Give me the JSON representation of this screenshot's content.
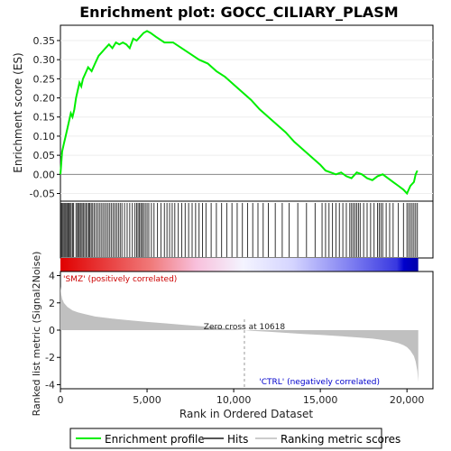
{
  "chart_data": {
    "type": "line",
    "title": "Enrichment plot: GOCC_CILIARY_PLASM",
    "es_panel": {
      "ylabel": "Enrichment score (ES)",
      "ylim": [
        -0.07,
        0.39
      ],
      "yticks": [
        -0.05,
        0.0,
        0.05,
        0.1,
        0.15,
        0.2,
        0.25,
        0.3,
        0.35
      ],
      "ytick_labels": [
        "-0.05",
        "0.00",
        "0.05",
        "0.10",
        "0.15",
        "0.20",
        "0.25",
        "0.30",
        "0.35"
      ],
      "series": [
        {
          "name": "Enrichment profile",
          "color": "#00ee00",
          "x": [
            0,
            100,
            200,
            300,
            400,
            500,
            600,
            700,
            800,
            900,
            1000,
            1100,
            1200,
            1300,
            1400,
            1500,
            1600,
            1800,
            2000,
            2200,
            2400,
            2600,
            2800,
            3000,
            3200,
            3400,
            3600,
            3800,
            4000,
            4200,
            4400,
            4600,
            4800,
            5000,
            5200,
            5500,
            6000,
            6500,
            7000,
            7500,
            8000,
            8500,
            9000,
            9500,
            10000,
            10500,
            11000,
            11500,
            12000,
            12500,
            13000,
            13500,
            14000,
            14500,
            15000,
            15300,
            15600,
            15900,
            16200,
            16500,
            16800,
            17100,
            17400,
            17700,
            18000,
            18300,
            18600,
            18900,
            19200,
            19500,
            19800,
            20000,
            20200,
            20400,
            20500,
            20600
          ],
          "y": [
            0.0,
            0.06,
            0.08,
            0.1,
            0.12,
            0.14,
            0.16,
            0.15,
            0.17,
            0.2,
            0.22,
            0.24,
            0.23,
            0.25,
            0.26,
            0.27,
            0.28,
            0.27,
            0.29,
            0.31,
            0.32,
            0.33,
            0.34,
            0.33,
            0.345,
            0.34,
            0.345,
            0.34,
            0.33,
            0.355,
            0.35,
            0.36,
            0.37,
            0.375,
            0.37,
            0.36,
            0.345,
            0.345,
            0.33,
            0.315,
            0.3,
            0.29,
            0.27,
            0.255,
            0.235,
            0.215,
            0.195,
            0.17,
            0.15,
            0.13,
            0.11,
            0.085,
            0.065,
            0.045,
            0.025,
            0.01,
            0.005,
            0.0,
            0.005,
            -0.005,
            -0.01,
            0.005,
            0.0,
            -0.01,
            -0.015,
            -0.005,
            0.0,
            -0.01,
            -0.02,
            -0.03,
            -0.04,
            -0.05,
            -0.03,
            -0.02,
            0.0,
            0.01
          ]
        }
      ]
    },
    "hits": [
      30,
      80,
      140,
      200,
      260,
      320,
      380,
      440,
      500,
      560,
      620,
      700,
      760,
      900,
      980,
      1040,
      1100,
      1180,
      1250,
      1320,
      1400,
      1480,
      1560,
      1640,
      1700,
      1780,
      1860,
      1950,
      2050,
      2150,
      2250,
      2350,
      2450,
      2550,
      2650,
      2750,
      2850,
      2950,
      3050,
      3150,
      3250,
      3350,
      3450,
      3550,
      3700,
      3850,
      4000,
      4150,
      4300,
      4400,
      4480,
      4560,
      4640,
      4720,
      4800,
      4900,
      5000,
      5100,
      5250,
      5400,
      5600,
      5800,
      6000,
      6150,
      6300,
      6450,
      6600,
      6800,
      7000,
      7200,
      7400,
      7600,
      7800,
      8000,
      8200,
      8400,
      8700,
      9000,
      9300,
      9600,
      9900,
      10200,
      10500,
      10800,
      11100,
      11400,
      11700,
      12000,
      12400,
      12800,
      13200,
      13700,
      14200,
      14700,
      15100,
      15300,
      15500,
      15700,
      15900,
      16100,
      16300,
      16500,
      16700,
      16800,
      16900,
      17000,
      17100,
      17200,
      17300,
      17500,
      17700,
      17900,
      18100,
      18300,
      18400,
      18500,
      18600,
      18800,
      19000,
      19200,
      19500,
      19800,
      20000,
      20100,
      20200,
      20300,
      20400,
      20500,
      20600
    ],
    "metric_panel": {
      "ylabel": "Ranked list metric (Signal2Noise)",
      "ylim": [
        -4.3,
        4.3
      ],
      "yticks": [
        -4,
        -2,
        0,
        2,
        4
      ],
      "ytick_labels": [
        "-4",
        "-2",
        "0",
        "2",
        "4"
      ],
      "profile_x": [
        0,
        50,
        100,
        200,
        400,
        700,
        1000,
        1500,
        2000,
        3000,
        4000,
        5000,
        6000,
        7000,
        8000,
        9000,
        10000,
        10618,
        11000,
        12000,
        13000,
        14000,
        15000,
        16000,
        17000,
        18000,
        18500,
        19000,
        19500,
        19800,
        20000,
        20200,
        20400,
        20500,
        20600,
        20650
      ],
      "profile_y": [
        3.2,
        2.6,
        2.3,
        2.0,
        1.7,
        1.45,
        1.3,
        1.15,
        1.0,
        0.85,
        0.72,
        0.6,
        0.5,
        0.4,
        0.3,
        0.2,
        0.08,
        0.0,
        -0.05,
        -0.12,
        -0.2,
        -0.28,
        -0.35,
        -0.43,
        -0.52,
        -0.62,
        -0.7,
        -0.8,
        -0.95,
        -1.1,
        -1.25,
        -1.5,
        -1.9,
        -2.3,
        -3.0,
        -3.8
      ],
      "zero_cross_label": "Zero cross at 10618",
      "zero_cross": 10618,
      "positive_label": "'SMZ' (positively correlated)",
      "negative_label": "'CTRL' (negatively correlated)"
    },
    "x_axis": {
      "label": "Rank in Ordered Dataset",
      "xlim": [
        0,
        21500
      ],
      "ticks": [
        0,
        5000,
        10000,
        15000,
        20000
      ],
      "tick_labels": [
        "0",
        "5,000",
        "10,000",
        "15,000",
        "20,000"
      ],
      "n_genes": 20650
    },
    "legend": {
      "placement": "bottom",
      "items": [
        {
          "label": "Enrichment profile",
          "color": "#00ee00"
        },
        {
          "label": "Hits",
          "color": "#555555"
        },
        {
          "label": "Ranking metric scores",
          "color": "#cccccc"
        }
      ]
    }
  }
}
